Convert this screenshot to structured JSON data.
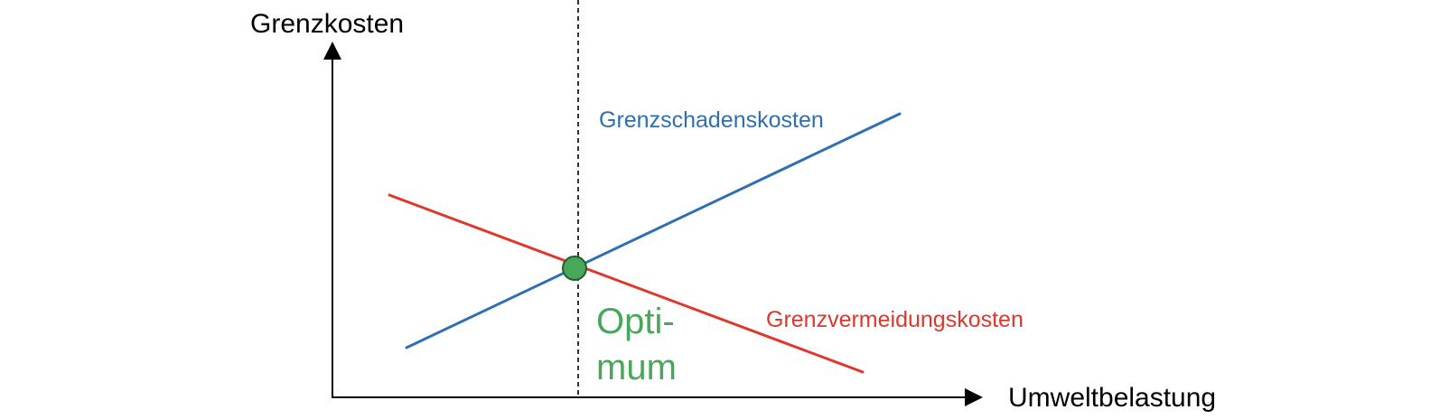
{
  "colors": {
    "damage": "#2f6fb1",
    "avoidance": "#e0362c",
    "optimum": "#48a85a",
    "optimum_stroke": "#1f5e2d",
    "axis": "#000000"
  },
  "axes": {
    "y_label": "Grenzkosten",
    "x_label": "Umweltbelastung"
  },
  "curves": {
    "damage_label": "Grenzschadenskosten",
    "avoidance_label": "Grenzvermeidungskosten"
  },
  "optimum": {
    "label_line1": "Opti-",
    "label_line2": "mum"
  }
}
